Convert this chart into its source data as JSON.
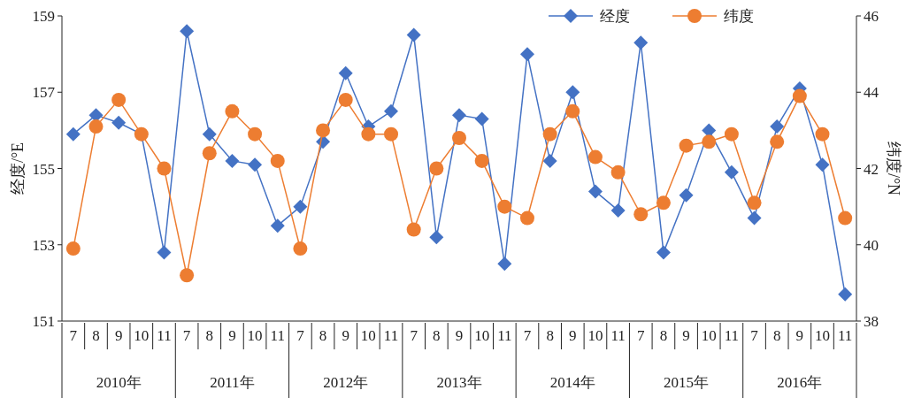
{
  "chart_data": {
    "type": "line",
    "ylabel": "经度/°E",
    "y2label": "纬度/°N",
    "categories": [
      "7",
      "8",
      "9",
      "10",
      "11",
      "7",
      "8",
      "9",
      "10",
      "11",
      "7",
      "8",
      "9",
      "10",
      "11",
      "7",
      "8",
      "9",
      "10",
      "11",
      "7",
      "8",
      "9",
      "10",
      "11",
      "7",
      "8",
      "9",
      "10",
      "11",
      "7",
      "8",
      "9",
      "10",
      "11"
    ],
    "annotations": [
      "2010年",
      "2011年",
      "2012年",
      "2013年",
      "2014年",
      "2015年",
      "2016年"
    ],
    "series": [
      {
        "name": "经度",
        "color": "#4472c4",
        "marker": "diamond",
        "values": [
          155.9,
          156.4,
          156.2,
          155.9,
          152.8,
          158.6,
          155.9,
          155.2,
          155.1,
          153.5,
          154.0,
          155.7,
          157.5,
          156.1,
          156.5,
          158.5,
          153.2,
          156.4,
          156.3,
          152.5,
          158.0,
          155.2,
          157.0,
          154.4,
          153.9,
          158.3,
          152.8,
          154.3,
          156.0,
          154.9,
          153.7,
          156.1,
          157.1,
          155.1,
          151.7
        ]
      },
      {
        "name": "纬度",
        "color": "#ed7d31",
        "marker": "circle",
        "axis": "y2",
        "values": [
          39.9,
          43.1,
          43.8,
          42.9,
          42.0,
          39.2,
          42.4,
          43.5,
          42.9,
          42.2,
          39.9,
          43.0,
          43.8,
          42.9,
          42.9,
          40.4,
          42.0,
          42.8,
          42.2,
          41.0,
          40.7,
          42.9,
          43.5,
          42.3,
          41.9,
          40.8,
          41.1,
          42.6,
          42.7,
          42.9,
          41.1,
          42.7,
          43.9,
          42.9,
          40.7
        ]
      }
    ],
    "ylim": [
      151,
      159
    ],
    "yticks": [
      151,
      153,
      155,
      157,
      159
    ],
    "y2lim": [
      38,
      46
    ],
    "y2ticks": [
      38,
      40,
      42,
      44,
      46
    ],
    "legend": "top right",
    "grid": false
  }
}
